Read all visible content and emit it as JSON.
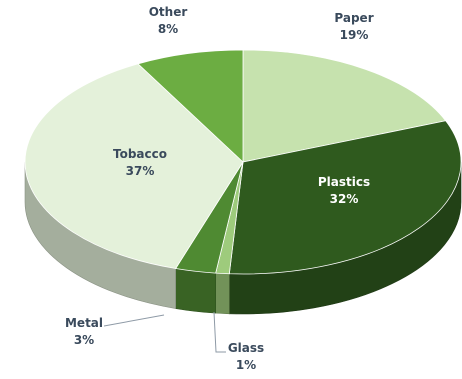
{
  "chart_data": {
    "type": "pie",
    "style": "3d",
    "title": "",
    "slices": [
      {
        "label": "Paper",
        "value_label": "19%",
        "value": 19,
        "color": "#c6e2ae"
      },
      {
        "label": "Plastics",
        "value_label": "32%",
        "value": 32,
        "color": "#2f5a1e"
      },
      {
        "label": "Glass",
        "value_label": "1%",
        "value": 1,
        "color": "#9ecb7c"
      },
      {
        "label": "Metal",
        "value_label": "3%",
        "value": 3,
        "color": "#4f8a32"
      },
      {
        "label": "Tobacco",
        "value_label": "37%",
        "value": 37,
        "color": "#e4f1da"
      },
      {
        "label": "Other",
        "value_label": "8%",
        "value": 8,
        "color": "#6cad42"
      }
    ]
  }
}
